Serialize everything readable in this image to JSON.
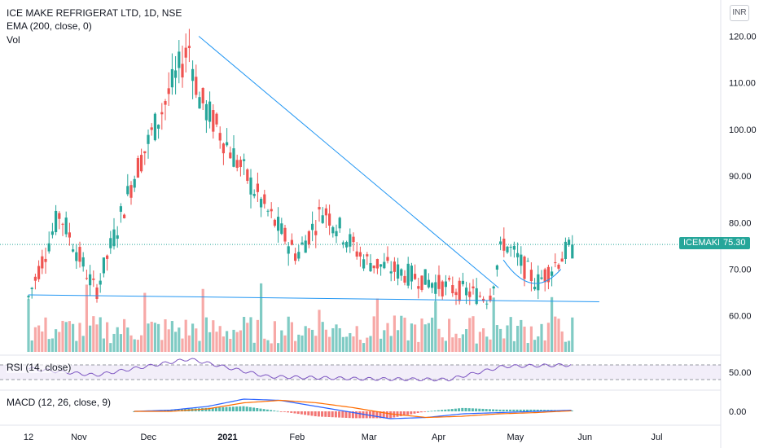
{
  "header": {
    "title": "ICE MAKE REFRIGERAT LTD, 1D, NSE",
    "ema": "EMA (200, close, 0)",
    "vol": "Vol"
  },
  "currency": "INR",
  "symbol_tag": {
    "symbol": "ICEMAKE",
    "price": "75.30"
  },
  "indicators": {
    "rsi": "RSI (14, close)",
    "macd": "MACD (12, 26, close, 9)"
  },
  "colors": {
    "up": "#26a69a",
    "down": "#ef5350",
    "trend": "#2196f3",
    "rsi": "#7e57c2",
    "macd": "#2962ff",
    "signal": "#ff6d00"
  },
  "chart_data": [
    {
      "type": "candlestick",
      "title": "ICE MAKE REFRIGERAT LTD, 1D, NSE",
      "ylim": [
        52,
        123
      ],
      "y_ticks": [
        "120.00",
        "110.00",
        "100.00",
        "90.00",
        "80.00",
        "70.00",
        "60.00"
      ],
      "x_ticks": [
        "12",
        "Nov",
        "Dec",
        "2021",
        "Feb",
        "Mar",
        "Apr",
        "May",
        "Jun",
        "Jul"
      ],
      "last_price": 75.3,
      "key_points": [
        {
          "date": "Oct 12",
          "close": 64
        },
        {
          "date": "Oct 25",
          "close": 82
        },
        {
          "date": "Nov 09",
          "close": 65
        },
        {
          "date": "Nov 25",
          "close": 90
        },
        {
          "date": "Dec 18",
          "close": 118
        },
        {
          "date": "Dec 22",
          "close": 107
        },
        {
          "date": "Jan 20",
          "close": 82
        },
        {
          "date": "Feb 01",
          "close": 73
        },
        {
          "date": "Feb 12",
          "close": 83
        },
        {
          "date": "Mar 01",
          "close": 72
        },
        {
          "date": "Apr 05",
          "close": 66
        },
        {
          "date": "Apr 22",
          "close": 64
        },
        {
          "date": "Apr 28",
          "close": 76
        },
        {
          "date": "May 12",
          "close": 67
        },
        {
          "date": "May 27",
          "close": 75.3
        }
      ],
      "trendlines": [
        {
          "from": {
            "date": "Dec 22",
            "price": 120
          },
          "to": {
            "date": "Apr 26",
            "price": 66
          }
        },
        {
          "from": {
            "date": "Oct 12",
            "price": 64.5
          },
          "to": {
            "date": "Jun 07",
            "price": 63
          }
        }
      ]
    },
    {
      "type": "line",
      "title": "RSI (14, close)",
      "ylim": [
        30,
        80
      ],
      "y_ticks": [
        "50.00"
      ],
      "key_points": [
        {
          "date": "Oct 12",
          "value": 55
        },
        {
          "date": "Nov 09",
          "value": 46
        },
        {
          "date": "Dec 18",
          "value": 68
        },
        {
          "date": "Jan 20",
          "value": 44
        },
        {
          "date": "Mar 01",
          "value": 41
        },
        {
          "date": "Apr 05",
          "value": 40
        },
        {
          "date": "Apr 28",
          "value": 58
        },
        {
          "date": "May 27",
          "value": 60
        }
      ]
    },
    {
      "type": "line",
      "title": "MACD (12, 26, close, 9)",
      "y_ticks": [
        "0.00"
      ],
      "series": [
        {
          "values": [
            0,
            1,
            4,
            10,
            9,
            4,
            -1,
            -6,
            -5,
            -2,
            -1,
            0,
            1
          ]
        },
        {
          "values": [
            0,
            0,
            2,
            7,
            9,
            7,
            3,
            -2,
            -5,
            -4,
            -2,
            -1,
            0.5
          ]
        }
      ]
    }
  ]
}
